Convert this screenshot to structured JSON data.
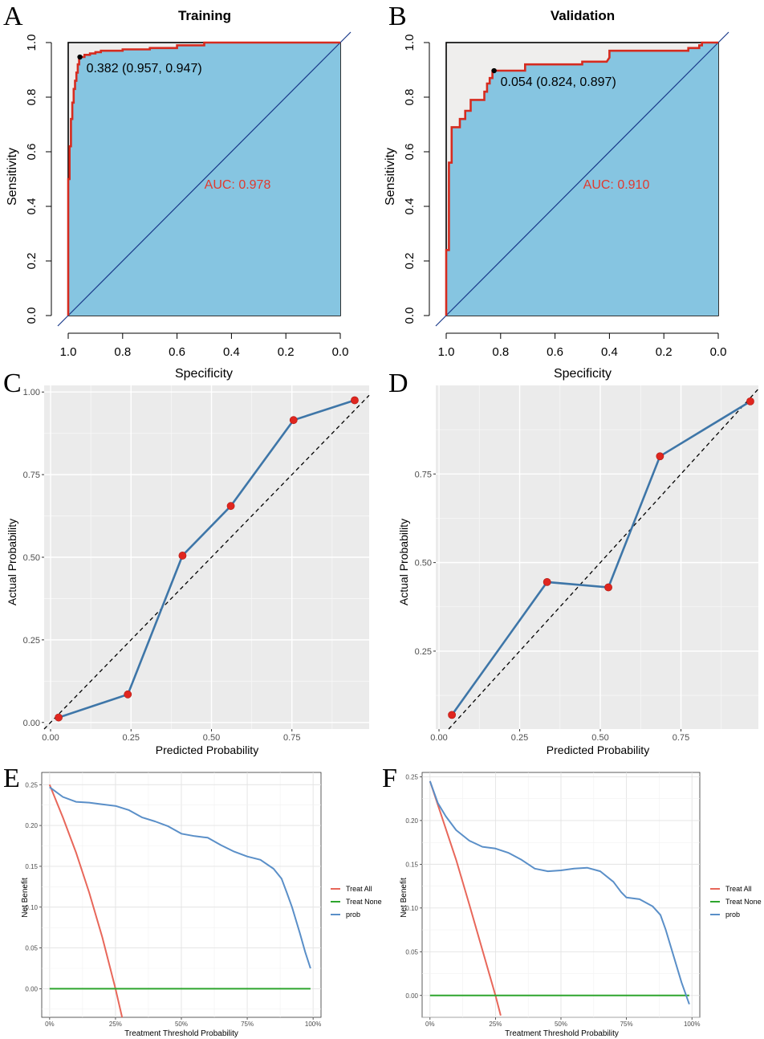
{
  "panels": {
    "A": {
      "letter": "A",
      "chart_data": {
        "type": "line",
        "subtype": "roc",
        "title": "Training",
        "xlabel": "Specificity",
        "ylabel": "Sensitivity",
        "x_reversed": true,
        "xlim": [
          1.0,
          0.0
        ],
        "ylim": [
          0.0,
          1.0
        ],
        "x_ticks": [
          1.0,
          0.8,
          0.6,
          0.4,
          0.2,
          0.0
        ],
        "x_tick_labels": [
          "1.0",
          "0.8",
          "0.6",
          "0.4",
          "0.2",
          "0.0"
        ],
        "y_ticks": [
          0.0,
          0.2,
          0.4,
          0.6,
          0.8,
          1.0
        ],
        "y_tick_labels": [
          "0.0",
          "0.2",
          "0.4",
          "0.6",
          "0.8",
          "1.0"
        ],
        "auc_label": "AUC: 0.978",
        "cutoff_point": {
          "specificity": 0.957,
          "sensitivity": 0.947
        },
        "cutoff_label": "0.382 (0.957, 0.947)",
        "curve": [
          [
            1.0,
            0.0
          ],
          [
            1.0,
            0.5
          ],
          [
            0.995,
            0.5
          ],
          [
            0.995,
            0.62
          ],
          [
            0.99,
            0.62
          ],
          [
            0.99,
            0.72
          ],
          [
            0.985,
            0.72
          ],
          [
            0.985,
            0.78
          ],
          [
            0.98,
            0.78
          ],
          [
            0.98,
            0.83
          ],
          [
            0.975,
            0.83
          ],
          [
            0.975,
            0.86
          ],
          [
            0.97,
            0.86
          ],
          [
            0.97,
            0.89
          ],
          [
            0.965,
            0.89
          ],
          [
            0.965,
            0.92
          ],
          [
            0.96,
            0.92
          ],
          [
            0.96,
            0.945
          ],
          [
            0.957,
            0.947
          ],
          [
            0.94,
            0.947
          ],
          [
            0.94,
            0.955
          ],
          [
            0.92,
            0.955
          ],
          [
            0.92,
            0.96
          ],
          [
            0.9,
            0.96
          ],
          [
            0.9,
            0.965
          ],
          [
            0.88,
            0.965
          ],
          [
            0.88,
            0.97
          ],
          [
            0.8,
            0.97
          ],
          [
            0.8,
            0.975
          ],
          [
            0.7,
            0.975
          ],
          [
            0.7,
            0.98
          ],
          [
            0.6,
            0.98
          ],
          [
            0.6,
            0.99
          ],
          [
            0.5,
            0.99
          ],
          [
            0.5,
            1.0
          ],
          [
            0.0,
            1.0
          ]
        ]
      }
    },
    "B": {
      "letter": "B",
      "chart_data": {
        "type": "line",
        "subtype": "roc",
        "title": "Validation",
        "xlabel": "Specificity",
        "ylabel": "Sensitivity",
        "x_reversed": true,
        "xlim": [
          1.0,
          0.0
        ],
        "ylim": [
          0.0,
          1.0
        ],
        "x_ticks": [
          1.0,
          0.8,
          0.6,
          0.4,
          0.2,
          0.0
        ],
        "x_tick_labels": [
          "1.0",
          "0.8",
          "0.6",
          "0.4",
          "0.2",
          "0.0"
        ],
        "y_ticks": [
          0.0,
          0.2,
          0.4,
          0.6,
          0.8,
          1.0
        ],
        "y_tick_labels": [
          "0.0",
          "0.2",
          "0.4",
          "0.6",
          "0.8",
          "1.0"
        ],
        "auc_label": "AUC: 0.910",
        "cutoff_point": {
          "specificity": 0.824,
          "sensitivity": 0.897
        },
        "cutoff_label": "0.054 (0.824, 0.897)",
        "curve": [
          [
            1.0,
            0.0
          ],
          [
            1.0,
            0.24
          ],
          [
            0.99,
            0.24
          ],
          [
            0.99,
            0.56
          ],
          [
            0.98,
            0.56
          ],
          [
            0.98,
            0.69
          ],
          [
            0.95,
            0.69
          ],
          [
            0.95,
            0.72
          ],
          [
            0.93,
            0.72
          ],
          [
            0.93,
            0.75
          ],
          [
            0.91,
            0.75
          ],
          [
            0.91,
            0.79
          ],
          [
            0.86,
            0.79
          ],
          [
            0.86,
            0.82
          ],
          [
            0.85,
            0.82
          ],
          [
            0.85,
            0.85
          ],
          [
            0.84,
            0.85
          ],
          [
            0.84,
            0.87
          ],
          [
            0.83,
            0.87
          ],
          [
            0.83,
            0.897
          ],
          [
            0.824,
            0.897
          ],
          [
            0.71,
            0.897
          ],
          [
            0.71,
            0.92
          ],
          [
            0.5,
            0.92
          ],
          [
            0.5,
            0.93
          ],
          [
            0.41,
            0.93
          ],
          [
            0.4,
            0.945
          ],
          [
            0.4,
            0.97
          ],
          [
            0.11,
            0.97
          ],
          [
            0.11,
            0.98
          ],
          [
            0.07,
            0.98
          ],
          [
            0.07,
            0.99
          ],
          [
            0.06,
            0.99
          ],
          [
            0.06,
            1.0
          ],
          [
            0.0,
            1.0
          ]
        ]
      }
    },
    "C": {
      "letter": "C",
      "chart_data": {
        "type": "line",
        "subtype": "calibration",
        "xlabel": "Predicted Probability",
        "ylabel": "Actual Probability",
        "xlim": [
          -0.02,
          0.99
        ],
        "ylim": [
          -0.02,
          1.02
        ],
        "x_ticks": [
          0.0,
          0.25,
          0.5,
          0.75
        ],
        "x_tick_labels": [
          "0.00",
          "0.25",
          "0.50",
          "0.75"
        ],
        "y_ticks": [
          0.0,
          0.25,
          0.5,
          0.75,
          1.0
        ],
        "y_tick_labels": [
          "0.00",
          "0.25",
          "0.50",
          "0.75",
          "1.00"
        ],
        "x": [
          0.025,
          0.24,
          0.41,
          0.56,
          0.755,
          0.945
        ],
        "y": [
          0.015,
          0.085,
          0.505,
          0.655,
          0.915,
          0.975
        ]
      }
    },
    "D": {
      "letter": "D",
      "chart_data": {
        "type": "line",
        "subtype": "calibration",
        "xlabel": "Predicted Probability",
        "ylabel": "Actual Probability",
        "xlim": [
          -0.01,
          0.99
        ],
        "ylim": [
          0.03,
          1.0
        ],
        "x_ticks": [
          0.0,
          0.25,
          0.5,
          0.75
        ],
        "x_tick_labels": [
          "0.00",
          "0.25",
          "0.50",
          "0.75"
        ],
        "y_ticks": [
          0.25,
          0.5,
          0.75
        ],
        "y_tick_labels": [
          "0.25",
          "0.50",
          "0.75"
        ],
        "x": [
          0.04,
          0.335,
          0.525,
          0.685,
          0.965
        ],
        "y": [
          0.07,
          0.445,
          0.43,
          0.8,
          0.955
        ]
      }
    },
    "E": {
      "letter": "E",
      "chart_data": {
        "type": "line",
        "subtype": "decision_curve",
        "xlabel": "Treatment Threshold Probability",
        "ylabel": "Net Benefit",
        "xlim": [
          -0.03,
          1.03
        ],
        "ylim": [
          -0.035,
          0.265
        ],
        "x_ticks": [
          0.0,
          0.25,
          0.5,
          0.75,
          1.0
        ],
        "x_tick_labels": [
          "0%",
          "25%",
          "50%",
          "75%",
          "100%"
        ],
        "y_ticks": [
          0.0,
          0.05,
          0.1,
          0.15,
          0.2,
          0.25
        ],
        "y_tick_labels": [
          "0.00",
          "0.05",
          "0.10",
          "0.15",
          "0.20",
          "0.25"
        ],
        "legend": [
          "Treat All",
          "Treat None",
          "prob"
        ],
        "series": [
          {
            "name": "Treat All",
            "x": [
              0.0,
              0.05,
              0.1,
              0.15,
              0.2,
              0.25,
              0.28
            ],
            "y": [
              0.25,
              0.21,
              0.167,
              0.118,
              0.063,
              0.0,
              -0.042
            ]
          },
          {
            "name": "Treat None",
            "x": [
              0.0,
              0.99
            ],
            "y": [
              0.0,
              0.0
            ]
          },
          {
            "name": "prob",
            "x": [
              0.0,
              0.05,
              0.1,
              0.15,
              0.2,
              0.25,
              0.3,
              0.35,
              0.4,
              0.45,
              0.5,
              0.55,
              0.6,
              0.65,
              0.7,
              0.75,
              0.8,
              0.85,
              0.88,
              0.9,
              0.92,
              0.95,
              0.97,
              0.99
            ],
            "y": [
              0.247,
              0.235,
              0.229,
              0.228,
              0.226,
              0.224,
              0.219,
              0.21,
              0.205,
              0.199,
              0.19,
              0.187,
              0.185,
              0.176,
              0.168,
              0.162,
              0.158,
              0.147,
              0.135,
              0.118,
              0.1,
              0.068,
              0.045,
              0.025
            ]
          }
        ]
      }
    },
    "F": {
      "letter": "F",
      "chart_data": {
        "type": "line",
        "subtype": "decision_curve",
        "xlabel": "Treatment Threshold Probability",
        "ylabel": "Net Benefit",
        "xlim": [
          -0.03,
          1.03
        ],
        "ylim": [
          -0.025,
          0.255
        ],
        "x_ticks": [
          0.0,
          0.25,
          0.5,
          0.75,
          1.0
        ],
        "x_tick_labels": [
          "0%",
          "25%",
          "50%",
          "75%",
          "100%"
        ],
        "y_ticks": [
          0.0,
          0.05,
          0.1,
          0.15,
          0.2,
          0.25
        ],
        "y_tick_labels": [
          "0.00",
          "0.05",
          "0.10",
          "0.15",
          "0.20",
          "0.25"
        ],
        "legend": [
          "Treat All",
          "Treat None",
          "prob"
        ],
        "series": [
          {
            "name": "Treat All",
            "x": [
              0.0,
              0.05,
              0.1,
              0.15,
              0.2,
              0.25,
              0.27
            ],
            "y": [
              0.245,
              0.2,
              0.155,
              0.104,
              0.052,
              0.0,
              -0.023
            ]
          },
          {
            "name": "Treat None",
            "x": [
              0.0,
              0.99
            ],
            "y": [
              0.0,
              0.0
            ]
          },
          {
            "name": "prob",
            "x": [
              0.0,
              0.03,
              0.06,
              0.1,
              0.15,
              0.2,
              0.25,
              0.3,
              0.35,
              0.4,
              0.45,
              0.5,
              0.55,
              0.6,
              0.65,
              0.7,
              0.73,
              0.75,
              0.8,
              0.85,
              0.88,
              0.9,
              0.93,
              0.96,
              0.99
            ],
            "y": [
              0.245,
              0.22,
              0.205,
              0.189,
              0.177,
              0.17,
              0.168,
              0.163,
              0.155,
              0.145,
              0.142,
              0.143,
              0.145,
              0.146,
              0.142,
              0.13,
              0.118,
              0.112,
              0.11,
              0.102,
              0.092,
              0.075,
              0.045,
              0.015,
              -0.01
            ]
          }
        ]
      }
    }
  }
}
